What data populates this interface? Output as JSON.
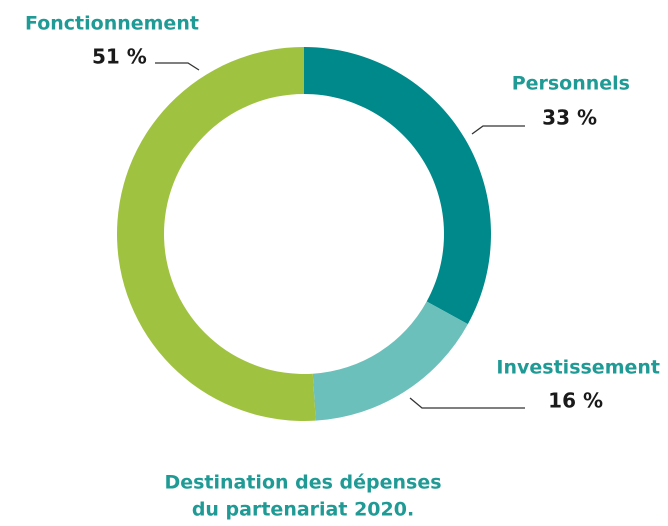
{
  "chart_data": {
    "type": "donut",
    "title": [
      "Destination des dépenses",
      "du partenariat 2020."
    ],
    "categories": [
      "Personnels",
      "Investissement",
      "Fonctionnement"
    ],
    "values": [
      33,
      16,
      51
    ],
    "value_labels": [
      "33 %",
      "16 %",
      "51 %"
    ],
    "colors": [
      "#00898a",
      "#6cc0bb",
      "#a0c241"
    ]
  }
}
